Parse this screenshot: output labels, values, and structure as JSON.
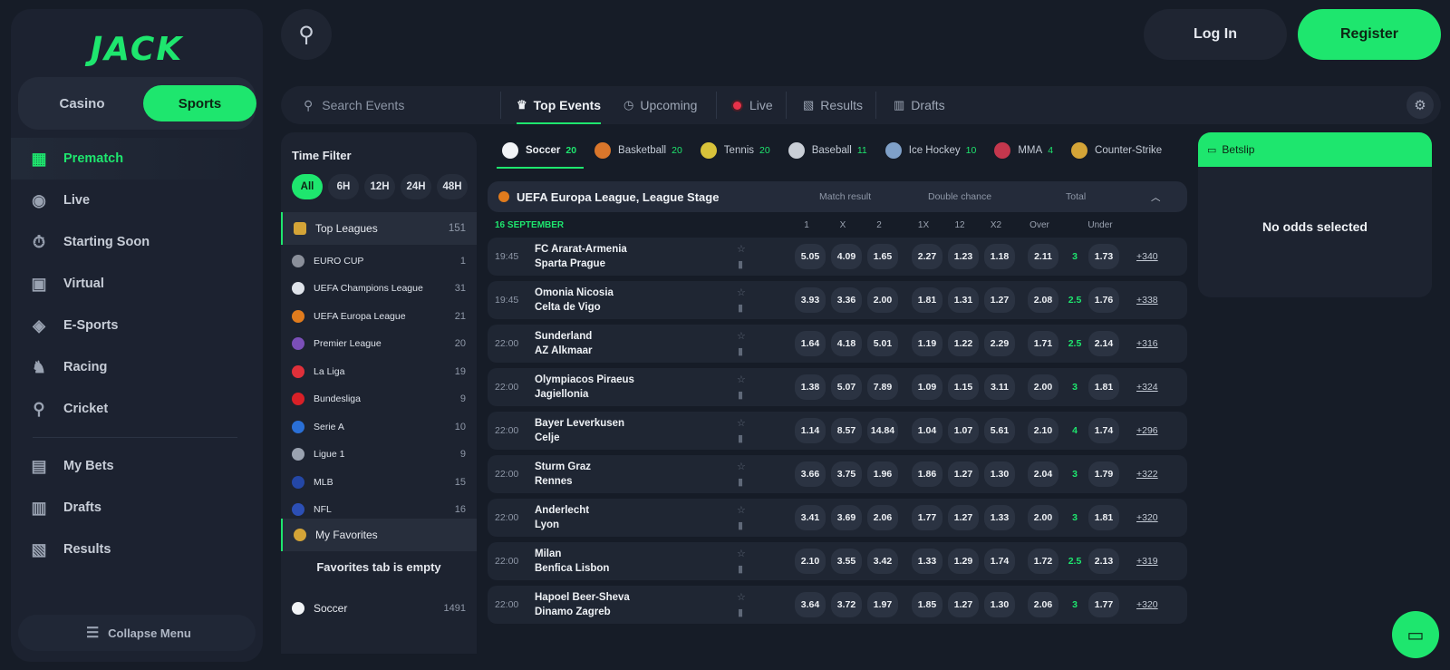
{
  "brand": {
    "logo_text": "JACK",
    "accent": "#1ee66e"
  },
  "mode_switch": {
    "casino": "Casino",
    "sports": "Sports",
    "active": "Sports"
  },
  "nav": {
    "items": [
      {
        "label": "Prematch",
        "icon": "calendar-icon",
        "active": true
      },
      {
        "label": "Live",
        "icon": "broadcast-icon"
      },
      {
        "label": "Starting Soon",
        "icon": "stopwatch-icon"
      },
      {
        "label": "Virtual",
        "icon": "virtual-icon"
      },
      {
        "label": "E-Sports",
        "icon": "gamepad-icon"
      },
      {
        "label": "Racing",
        "icon": "horse-icon"
      },
      {
        "label": "Cricket",
        "icon": "cricket-icon"
      }
    ],
    "items_bottom": [
      {
        "label": "My Bets",
        "icon": "mybets-icon"
      },
      {
        "label": "Drafts",
        "icon": "drafts-icon"
      },
      {
        "label": "Results",
        "icon": "results-icon"
      }
    ],
    "collapse_label": "Collapse Menu"
  },
  "header": {
    "login_label": "Log In",
    "register_label": "Register"
  },
  "tabbar": {
    "search_placeholder": "Search Events",
    "tabs": [
      {
        "label": "Top Events",
        "active": true,
        "icon": "trophy-icon"
      },
      {
        "label": "Upcoming",
        "icon": "clock-icon"
      },
      {
        "label": "Live",
        "icon": "live-dot-icon"
      },
      {
        "label": "Results",
        "icon": "results-icon"
      },
      {
        "label": "Drafts",
        "icon": "drafts-icon"
      }
    ]
  },
  "filter": {
    "title": "Time Filter",
    "time_options": [
      "All",
      "6H",
      "12H",
      "24H",
      "48H"
    ],
    "active_time": "All",
    "top_leagues": {
      "label": "Top Leagues",
      "count": "151"
    },
    "leagues": [
      {
        "label": "EURO CUP",
        "count": "1",
        "color": "#8a8f9a"
      },
      {
        "label": "UEFA Champions League",
        "count": "31",
        "color": "#dfe3ea"
      },
      {
        "label": "UEFA Europa League",
        "count": "21",
        "color": "#e07b1d"
      },
      {
        "label": "Premier League",
        "count": "20",
        "color": "#7b4fb8"
      },
      {
        "label": "La Liga",
        "count": "19",
        "color": "#e0303a"
      },
      {
        "label": "Bundesliga",
        "count": "9",
        "color": "#d92027"
      },
      {
        "label": "Serie A",
        "count": "10",
        "color": "#2a6fd6"
      },
      {
        "label": "Ligue 1",
        "count": "9",
        "color": "#9aa2b0"
      },
      {
        "label": "MLB",
        "count": "15",
        "color": "#2447a6"
      },
      {
        "label": "NFL",
        "count": "16",
        "color": "#2c4fb5"
      }
    ],
    "favorites": {
      "label": "My Favorites",
      "empty_text": "Favorites tab is empty"
    },
    "soccer": {
      "label": "Soccer",
      "count": "1491"
    }
  },
  "sports_tabs": [
    {
      "label": "Soccer",
      "count": "20",
      "active": true,
      "color": "#f2f4f7"
    },
    {
      "label": "Basketball",
      "count": "20",
      "color": "#d9762b"
    },
    {
      "label": "Tennis",
      "count": "20",
      "color": "#d8c23a"
    },
    {
      "label": "Baseball",
      "count": "11",
      "color": "#c9ced6"
    },
    {
      "label": "Ice Hockey",
      "count": "10",
      "color": "#7fa0c8"
    },
    {
      "label": "MMA",
      "count": "4",
      "color": "#c4374d"
    },
    {
      "label": "Counter-Strike",
      "count": "",
      "color": "#d4a437"
    }
  ],
  "league_block": {
    "title": "UEFA Europa League, League Stage",
    "markets": [
      "Match result",
      "Double chance",
      "Total"
    ],
    "date": "16 SEPTEMBER",
    "headers": [
      "1",
      "X",
      "2",
      "1X",
      "12",
      "X2",
      "Over",
      "Under"
    ]
  },
  "matches": [
    {
      "time": "19:45",
      "home": "FC Ararat-Armenia",
      "away": "Sparta Prague",
      "o1": "5.05",
      "ox": "4.09",
      "o2": "1.65",
      "d1x": "2.27",
      "d12": "1.23",
      "dx2": "1.18",
      "over": "2.11",
      "line": "3",
      "under": "1.73",
      "more": "+340"
    },
    {
      "time": "19:45",
      "home": "Omonia Nicosia",
      "away": "Celta de Vigo",
      "o1": "3.93",
      "ox": "3.36",
      "o2": "2.00",
      "d1x": "1.81",
      "d12": "1.31",
      "dx2": "1.27",
      "over": "2.08",
      "line": "2.5",
      "under": "1.76",
      "more": "+338"
    },
    {
      "time": "22:00",
      "home": "Sunderland",
      "away": "AZ Alkmaar",
      "o1": "1.64",
      "ox": "4.18",
      "o2": "5.01",
      "d1x": "1.19",
      "d12": "1.22",
      "dx2": "2.29",
      "over": "1.71",
      "line": "2.5",
      "under": "2.14",
      "more": "+316"
    },
    {
      "time": "22:00",
      "home": "Olympiacos Piraeus",
      "away": "Jagiellonia",
      "o1": "1.38",
      "ox": "5.07",
      "o2": "7.89",
      "d1x": "1.09",
      "d12": "1.15",
      "dx2": "3.11",
      "over": "2.00",
      "line": "3",
      "under": "1.81",
      "more": "+324"
    },
    {
      "time": "22:00",
      "home": "Bayer Leverkusen",
      "away": "Celje",
      "o1": "1.14",
      "ox": "8.57",
      "o2": "14.84",
      "d1x": "1.04",
      "d12": "1.07",
      "dx2": "5.61",
      "over": "2.10",
      "line": "4",
      "under": "1.74",
      "more": "+296"
    },
    {
      "time": "22:00",
      "home": "Sturm Graz",
      "away": "Rennes",
      "o1": "3.66",
      "ox": "3.75",
      "o2": "1.96",
      "d1x": "1.86",
      "d12": "1.27",
      "dx2": "1.30",
      "over": "2.04",
      "line": "3",
      "under": "1.79",
      "more": "+322"
    },
    {
      "time": "22:00",
      "home": "Anderlecht",
      "away": "Lyon",
      "o1": "3.41",
      "ox": "3.69",
      "o2": "2.06",
      "d1x": "1.77",
      "d12": "1.27",
      "dx2": "1.33",
      "over": "2.00",
      "line": "3",
      "under": "1.81",
      "more": "+320"
    },
    {
      "time": "22:00",
      "home": "Milan",
      "away": "Benfica Lisbon",
      "o1": "2.10",
      "ox": "3.55",
      "o2": "3.42",
      "d1x": "1.33",
      "d12": "1.29",
      "dx2": "1.74",
      "over": "1.72",
      "line": "2.5",
      "under": "2.13",
      "more": "+319"
    },
    {
      "time": "22:00",
      "home": "Hapoel Beer-Sheva",
      "away": "Dinamo Zagreb",
      "o1": "3.64",
      "ox": "3.72",
      "o2": "1.97",
      "d1x": "1.85",
      "d12": "1.27",
      "dx2": "1.30",
      "over": "2.06",
      "line": "3",
      "under": "1.77",
      "more": "+320"
    }
  ],
  "betslip": {
    "title": "Betslip",
    "empty_text": "No odds selected"
  }
}
